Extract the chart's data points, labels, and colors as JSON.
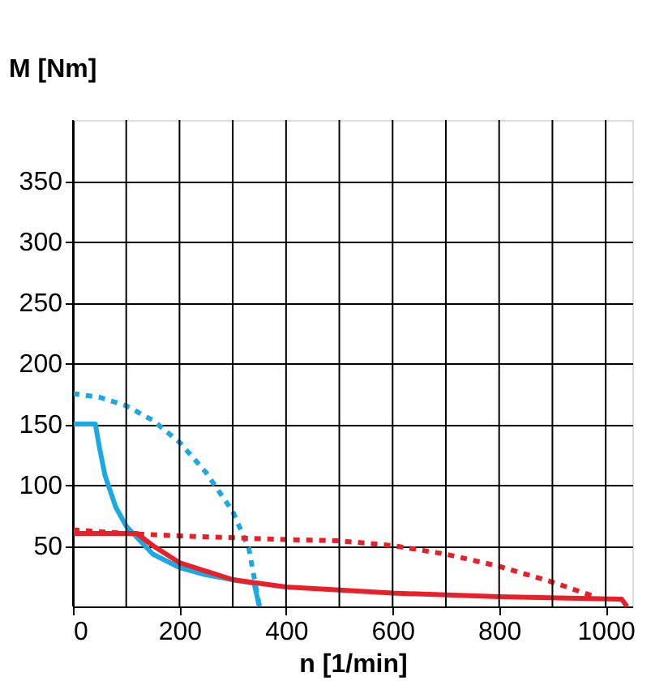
{
  "chart_data": {
    "type": "line",
    "xlabel": "n [1/min]",
    "ylabel": "M [Nm]",
    "xlim": [
      0,
      1050
    ],
    "ylim": [
      0,
      400
    ],
    "xticks": [
      0,
      {
        "value": 100,
        "label": null
      },
      200,
      {
        "value": 300,
        "label": null
      },
      400,
      {
        "value": 500,
        "label": null
      },
      600,
      {
        "value": 700,
        "label": null
      },
      800,
      {
        "value": 900,
        "label": null
      },
      1000
    ],
    "yticks": [
      50,
      100,
      150,
      200,
      250,
      300,
      350
    ],
    "grid": true,
    "marker": "none",
    "series": [
      {
        "color": "#1ba9e1",
        "line_style": "solid",
        "x": [
          0,
          42,
          50,
          60,
          80,
          100,
          150,
          200,
          250,
          300,
          340,
          350
        ],
        "values": [
          150,
          150,
          130,
          108,
          82,
          66,
          43,
          32,
          26,
          22,
          19,
          0
        ]
      },
      {
        "color": "#1ba9e1",
        "line_style": "dotted",
        "x": [
          0,
          50,
          100,
          150,
          200,
          250,
          300,
          330,
          350
        ],
        "values": [
          175,
          172,
          165,
          153,
          135,
          110,
          78,
          48,
          0
        ]
      },
      {
        "color": "#e8202a",
        "line_style": "solid",
        "x": [
          0,
          120,
          150,
          200,
          300,
          400,
          600,
          800,
          1030,
          1040
        ],
        "values": [
          60,
          60,
          50,
          36,
          22,
          16,
          11,
          8,
          6,
          0
        ]
      },
      {
        "color": "#e8202a",
        "line_style": "dotted",
        "x": [
          0,
          100,
          200,
          400,
          500,
          600,
          700,
          800,
          900,
          980
        ],
        "values": [
          63,
          60,
          58,
          55,
          54,
          50,
          43,
          33,
          20,
          8
        ]
      }
    ]
  }
}
